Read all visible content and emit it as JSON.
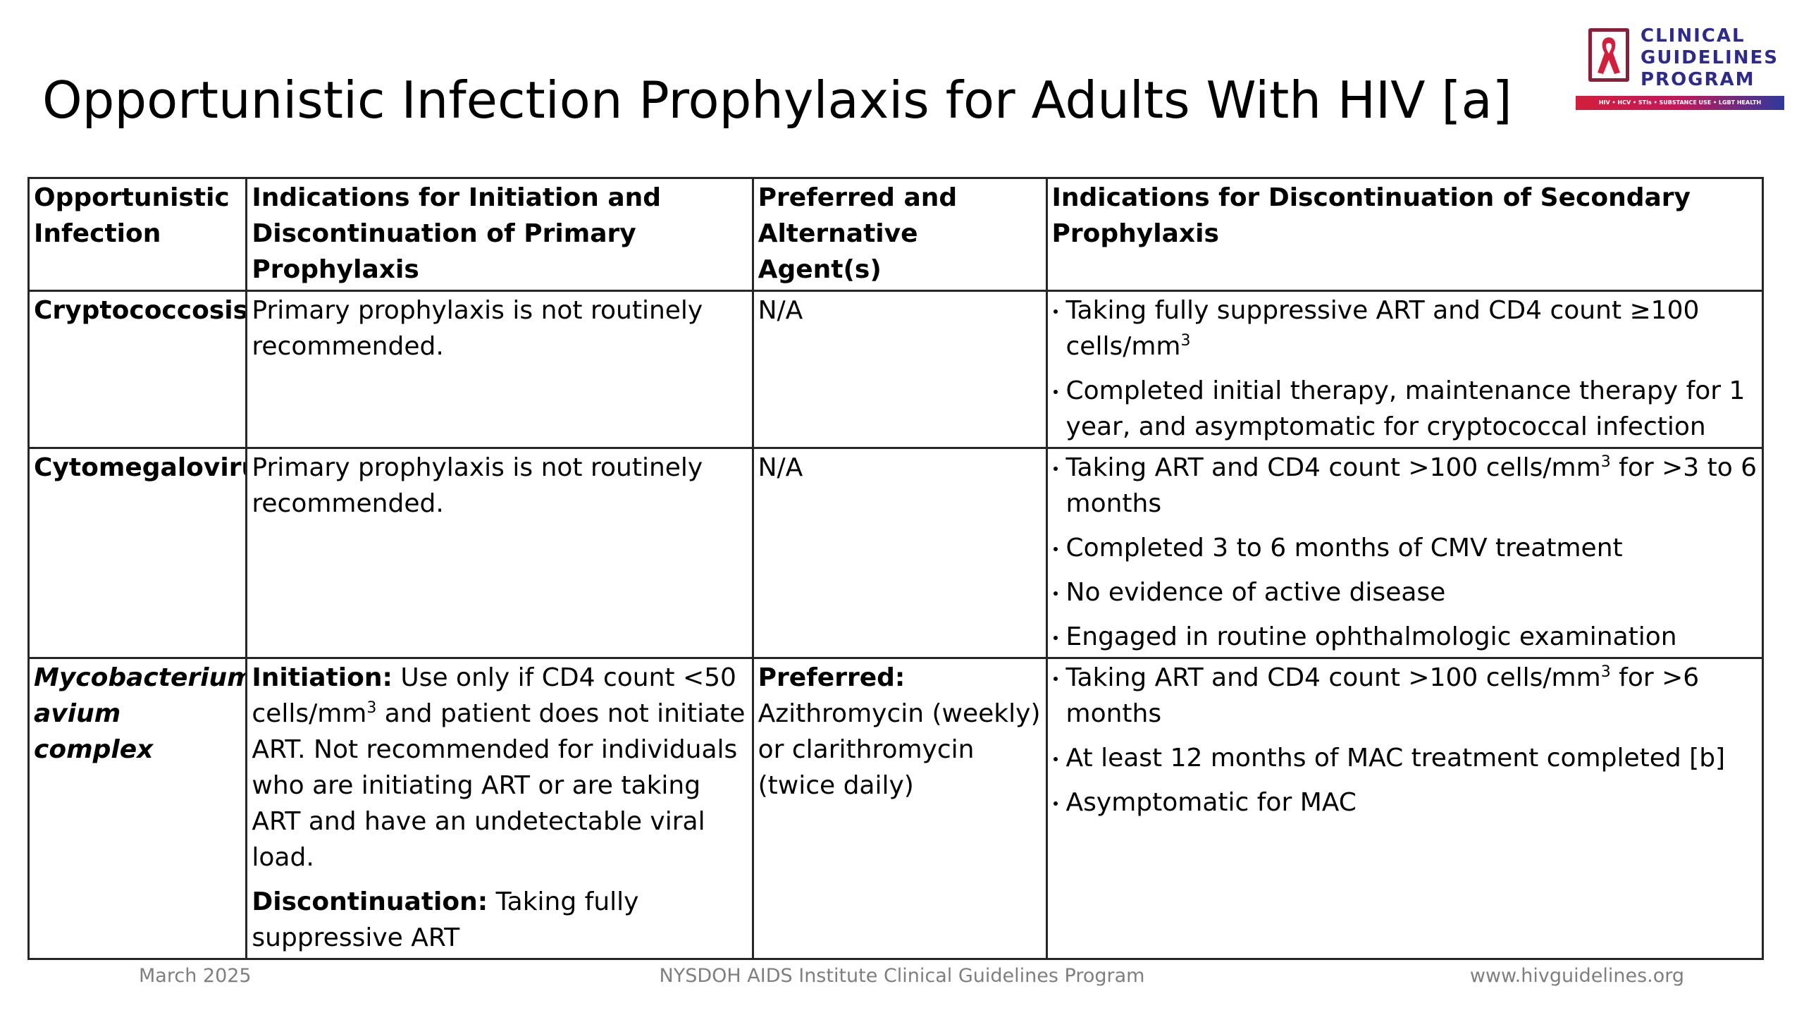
{
  "title": "Opportunistic Infection Prophylaxis for Adults With HIV [a]",
  "logo": {
    "icon": "red-ribbon-icon",
    "line1": "CLINICAL",
    "line2": "GUIDELINES",
    "line3": "PROGRAM",
    "tagline": "HIV • HCV • STIs • SUBSTANCE USE • LGBT HEALTH",
    "colors": {
      "text": "#2d2a8c",
      "ribbon": "#d21f3c",
      "frame": "#8a1f3a"
    }
  },
  "table": {
    "headers": [
      "Opportunistic Infection",
      "Indications for Initiation and Discontinuation of Primary Prophylaxis",
      "Preferred and Alternative Agent(s)",
      "Indications for Discontinuation of Secondary Prophylaxis"
    ],
    "rows": [
      {
        "infection": "Cryptococcosis",
        "primary": "Primary prophylaxis is not routinely recommended.",
        "agents": "N/A",
        "secondary": [
          {
            "text": "Taking fully suppressive ART and CD4 count ≥100 cells/mm",
            "sup": "3",
            "after": ""
          },
          {
            "text": "Completed initial therapy, maintenance therapy for 1 year, and asymptomatic for cryptococcal infection"
          }
        ]
      },
      {
        "infection": "Cytomegalovirus",
        "primary": "Primary prophylaxis is not routinely recommended.",
        "agents": "N/A",
        "secondary": [
          {
            "text": "Taking ART and CD4 count >100 cells/mm",
            "sup": "3",
            "after": " for >3 to 6 months"
          },
          {
            "text": "Completed 3 to 6 months of CMV treatment"
          },
          {
            "text": "No evidence of active disease"
          },
          {
            "text": "Engaged in routine ophthalmologic examination"
          }
        ]
      },
      {
        "infection": "Mycobacterium avium complex",
        "primary": {
          "initiation_label": "Initiation:",
          "initiation_text_a": " Use only if CD4 count <50 cells/mm",
          "initiation_sup": "3",
          "initiation_text_b": " and patient does not initiate ART. Not recommended for individuals who are initiating ART or are taking ART and have an undetectable viral load.",
          "discontinuation_label": "Discontinuation:",
          "discontinuation_text": " Taking fully suppressive ART"
        },
        "agents": {
          "preferred_label": "Preferred:",
          "preferred_text": "Azithromycin (weekly) or clarithromycin (twice daily)"
        },
        "secondary": [
          {
            "text": "Taking ART and CD4 count >100 cells/mm",
            "sup": "3",
            "after": " for >6 months"
          },
          {
            "text": "At least 12 months of MAC treatment completed [b]"
          },
          {
            "text": "Asymptomatic for MAC"
          }
        ]
      }
    ]
  },
  "footer": {
    "date": "March 2025",
    "program": "NYSDOH AIDS Institute Clinical Guidelines Program",
    "url": "www.hivguidelines.org"
  }
}
